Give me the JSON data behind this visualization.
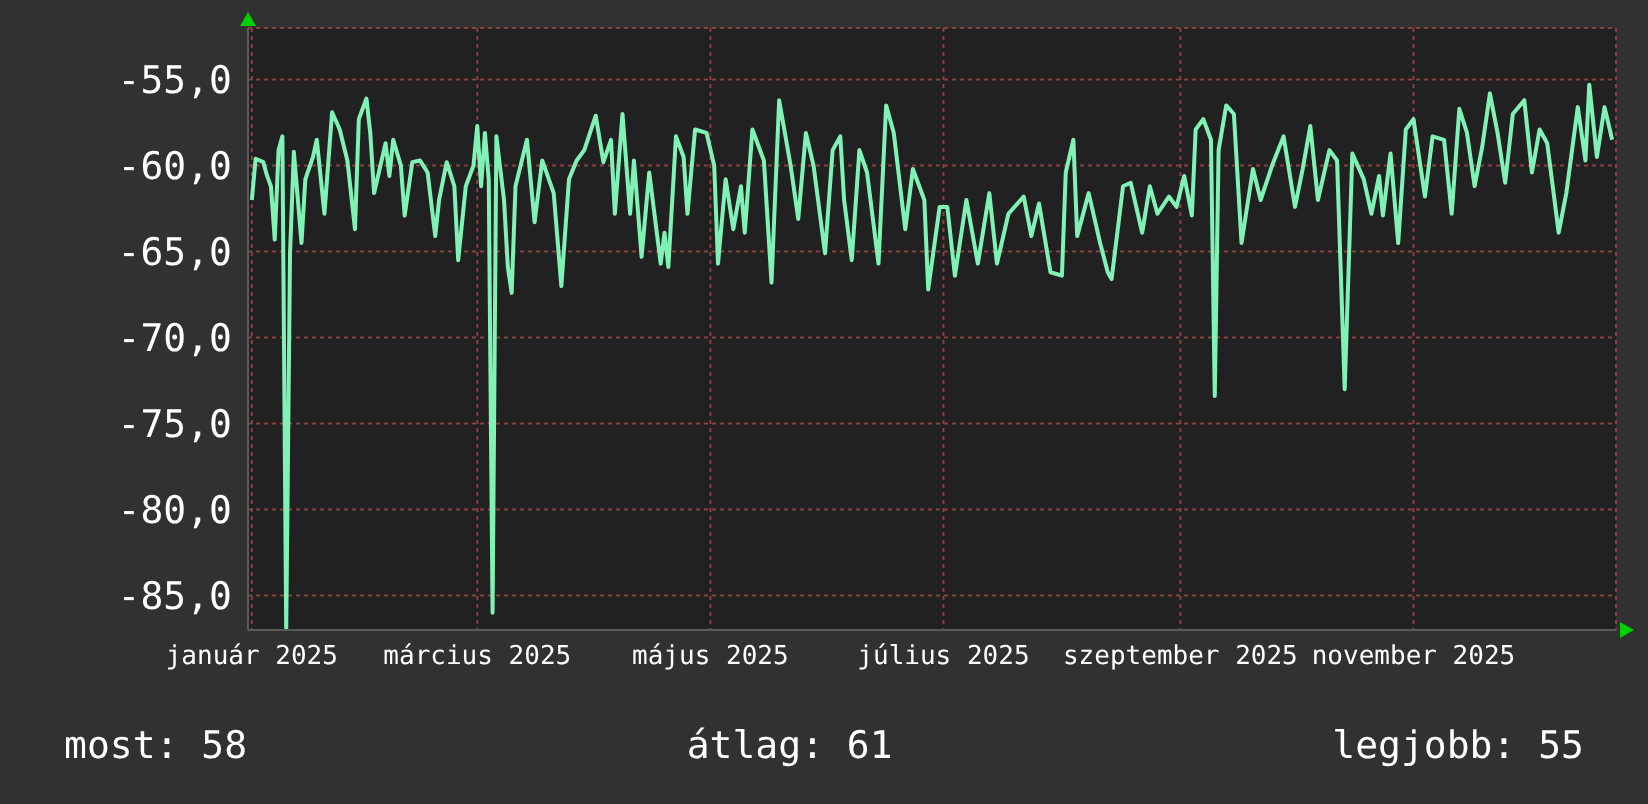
{
  "chart_data": {
    "type": "line",
    "x": [
      "2025-01-01",
      "2025-01-02",
      "2025-01-04",
      "2025-01-05",
      "2025-01-06",
      "2025-01-07",
      "2025-01-08",
      "2025-01-09",
      "2025-01-10",
      "2025-01-11",
      "2025-01-12",
      "2025-01-14",
      "2025-01-15",
      "2025-01-17",
      "2025-01-18",
      "2025-01-20",
      "2025-01-22",
      "2025-01-24",
      "2025-01-26",
      "2025-01-28",
      "2025-01-29",
      "2025-01-31",
      "2025-02-01",
      "2025-02-02",
      "2025-02-05",
      "2025-02-06",
      "2025-02-07",
      "2025-02-09",
      "2025-02-10",
      "2025-02-12",
      "2025-02-14",
      "2025-02-16",
      "2025-02-18",
      "2025-02-19",
      "2025-02-21",
      "2025-02-23",
      "2025-02-24",
      "2025-02-26",
      "2025-02-28",
      "2025-03-01",
      "2025-03-02",
      "2025-03-03",
      "2025-03-04",
      "2025-03-05",
      "2025-03-06",
      "2025-03-08",
      "2025-03-09",
      "2025-03-10",
      "2025-03-11",
      "2025-03-14",
      "2025-03-16",
      "2025-03-18",
      "2025-03-21",
      "2025-03-23",
      "2025-03-25",
      "2025-03-27",
      "2025-03-29",
      "2025-04-01",
      "2025-04-03",
      "2025-04-05",
      "2025-04-06",
      "2025-04-08",
      "2025-04-10",
      "2025-04-11",
      "2025-04-13",
      "2025-04-15",
      "2025-04-18",
      "2025-04-19",
      "2025-04-20",
      "2025-04-22",
      "2025-04-24",
      "2025-04-25",
      "2025-04-27",
      "2025-04-30",
      "2025-05-02",
      "2025-05-03",
      "2025-05-05",
      "2025-05-07",
      "2025-05-09",
      "2025-05-10",
      "2025-05-12",
      "2025-05-15",
      "2025-05-17",
      "2025-05-19",
      "2025-05-22",
      "2025-05-24",
      "2025-05-26",
      "2025-05-28",
      "2025-05-31",
      "2025-06-02",
      "2025-06-04",
      "2025-06-05",
      "2025-06-07",
      "2025-06-09",
      "2025-06-11",
      "2025-06-14",
      "2025-06-16",
      "2025-06-18",
      "2025-06-21",
      "2025-06-23",
      "2025-06-26",
      "2025-06-27",
      "2025-06-30",
      "2025-07-02",
      "2025-07-04",
      "2025-07-07",
      "2025-07-10",
      "2025-07-13",
      "2025-07-15",
      "2025-07-18",
      "2025-07-22",
      "2025-07-24",
      "2025-07-26",
      "2025-07-29",
      "2025-08-01",
      "2025-08-02",
      "2025-08-04",
      "2025-08-05",
      "2025-08-08",
      "2025-08-11",
      "2025-08-13",
      "2025-08-14",
      "2025-08-17",
      "2025-08-19",
      "2025-08-22",
      "2025-08-24",
      "2025-08-26",
      "2025-08-29",
      "2025-08-31",
      "2025-09-02",
      "2025-09-04",
      "2025-09-05",
      "2025-09-07",
      "2025-09-09",
      "2025-09-10",
      "2025-09-11",
      "2025-09-13",
      "2025-09-15",
      "2025-09-17",
      "2025-09-20",
      "2025-09-22",
      "2025-09-25",
      "2025-09-28",
      "2025-10-01",
      "2025-10-03",
      "2025-10-05",
      "2025-10-07",
      "2025-10-10",
      "2025-10-12",
      "2025-10-14",
      "2025-10-16",
      "2025-10-19",
      "2025-10-21",
      "2025-10-23",
      "2025-10-24",
      "2025-10-26",
      "2025-10-28",
      "2025-10-30",
      "2025-11-01",
      "2025-11-04",
      "2025-11-06",
      "2025-11-09",
      "2025-11-11",
      "2025-11-13",
      "2025-11-15",
      "2025-11-17",
      "2025-11-19",
      "2025-11-21",
      "2025-11-23",
      "2025-11-25",
      "2025-11-27",
      "2025-11-30",
      "2025-12-02",
      "2025-12-04",
      "2025-12-06",
      "2025-12-09",
      "2025-12-11",
      "2025-12-14",
      "2025-12-16",
      "2025-12-17",
      "2025-12-19",
      "2025-12-21",
      "2025-12-23"
    ],
    "series": [
      {
        "color": "#80f2b6",
        "values": [
          -62.0,
          -59.6,
          -59.8,
          -60.6,
          -61.2,
          -64.3,
          -59.1,
          -58.3,
          -87.0,
          -65.1,
          -59.2,
          -64.5,
          -60.8,
          -59.5,
          -58.5,
          -62.8,
          -56.9,
          -57.9,
          -59.7,
          -63.7,
          -57.3,
          -56.1,
          -58.1,
          -61.6,
          -58.7,
          -60.6,
          -58.5,
          -60.0,
          -62.9,
          -59.8,
          -59.7,
          -60.4,
          -64.1,
          -62.0,
          -59.8,
          -61.2,
          -65.5,
          -61.2,
          -60.0,
          -57.7,
          -61.2,
          -58.1,
          -60.8,
          -86.0,
          -58.3,
          -62.0,
          -65.9,
          -67.4,
          -61.2,
          -58.5,
          -63.3,
          -59.7,
          -61.6,
          -67.0,
          -60.8,
          -59.7,
          -59.1,
          -57.1,
          -59.8,
          -58.5,
          -62.8,
          -57.0,
          -62.8,
          -59.7,
          -65.3,
          -60.4,
          -65.7,
          -63.9,
          -65.9,
          -58.3,
          -59.5,
          -62.8,
          -57.9,
          -58.1,
          -60.0,
          -65.7,
          -60.8,
          -63.7,
          -61.2,
          -63.9,
          -57.9,
          -59.7,
          -66.8,
          -56.2,
          -60.0,
          -63.1,
          -58.1,
          -60.0,
          -65.1,
          -59.1,
          -58.3,
          -62.0,
          -65.5,
          -59.1,
          -60.4,
          -65.7,
          -56.5,
          -58.1,
          -63.7,
          -60.2,
          -62.0,
          -67.2,
          -62.4,
          -62.4,
          -66.4,
          -62.0,
          -65.7,
          -61.6,
          -65.7,
          -62.8,
          -61.8,
          -64.1,
          -62.2,
          -66.2,
          -66.4,
          -60.4,
          -58.5,
          -64.1,
          -61.6,
          -64.5,
          -66.2,
          -66.6,
          -61.2,
          -61.0,
          -63.9,
          -61.2,
          -62.8,
          -61.8,
          -62.4,
          -60.6,
          -62.9,
          -57.9,
          -57.3,
          -58.5,
          -73.4,
          -59.1,
          -56.5,
          -57.0,
          -64.5,
          -60.2,
          -62.0,
          -60.0,
          -58.3,
          -62.4,
          -60.2,
          -57.7,
          -62.0,
          -59.1,
          -59.7,
          -73.0,
          -59.3,
          -60.8,
          -62.8,
          -60.6,
          -62.9,
          -59.3,
          -64.5,
          -57.9,
          -57.3,
          -61.8,
          -58.3,
          -58.5,
          -62.8,
          -56.7,
          -58.1,
          -61.2,
          -58.9,
          -55.8,
          -58.1,
          -61.0,
          -57.0,
          -56.2,
          -60.4,
          -57.9,
          -58.7,
          -63.9,
          -61.6,
          -56.6,
          -59.7,
          -55.3,
          -59.5,
          -56.6,
          -58.5
        ]
      }
    ],
    "xlim": [
      "2024-12-31",
      "2025-12-24"
    ],
    "xticks": [
      {
        "value": "2025-01-01",
        "label": "január 2025"
      },
      {
        "value": "2025-03-01",
        "label": "március 2025"
      },
      {
        "value": "2025-05-01",
        "label": "május 2025"
      },
      {
        "value": "2025-07-01",
        "label": "július 2025"
      },
      {
        "value": "2025-09-01",
        "label": "szeptember 2025"
      },
      {
        "value": "2025-11-01",
        "label": "november 2025"
      }
    ],
    "ylim": [
      -87,
      -52
    ],
    "yticks": [
      {
        "value": -85,
        "label": "-85,0"
      },
      {
        "value": -80,
        "label": "-80,0"
      },
      {
        "value": -75,
        "label": "-75,0"
      },
      {
        "value": -70,
        "label": "-70,0"
      },
      {
        "value": -65,
        "label": "-65,0"
      },
      {
        "value": -60,
        "label": "-60,0"
      },
      {
        "value": -55,
        "label": "-55,0"
      }
    ],
    "grid": true,
    "marker": "none",
    "line_style": "solid",
    "annotations": [
      "most: 58",
      "átlag: 61",
      "legjobb: 55"
    ]
  }
}
